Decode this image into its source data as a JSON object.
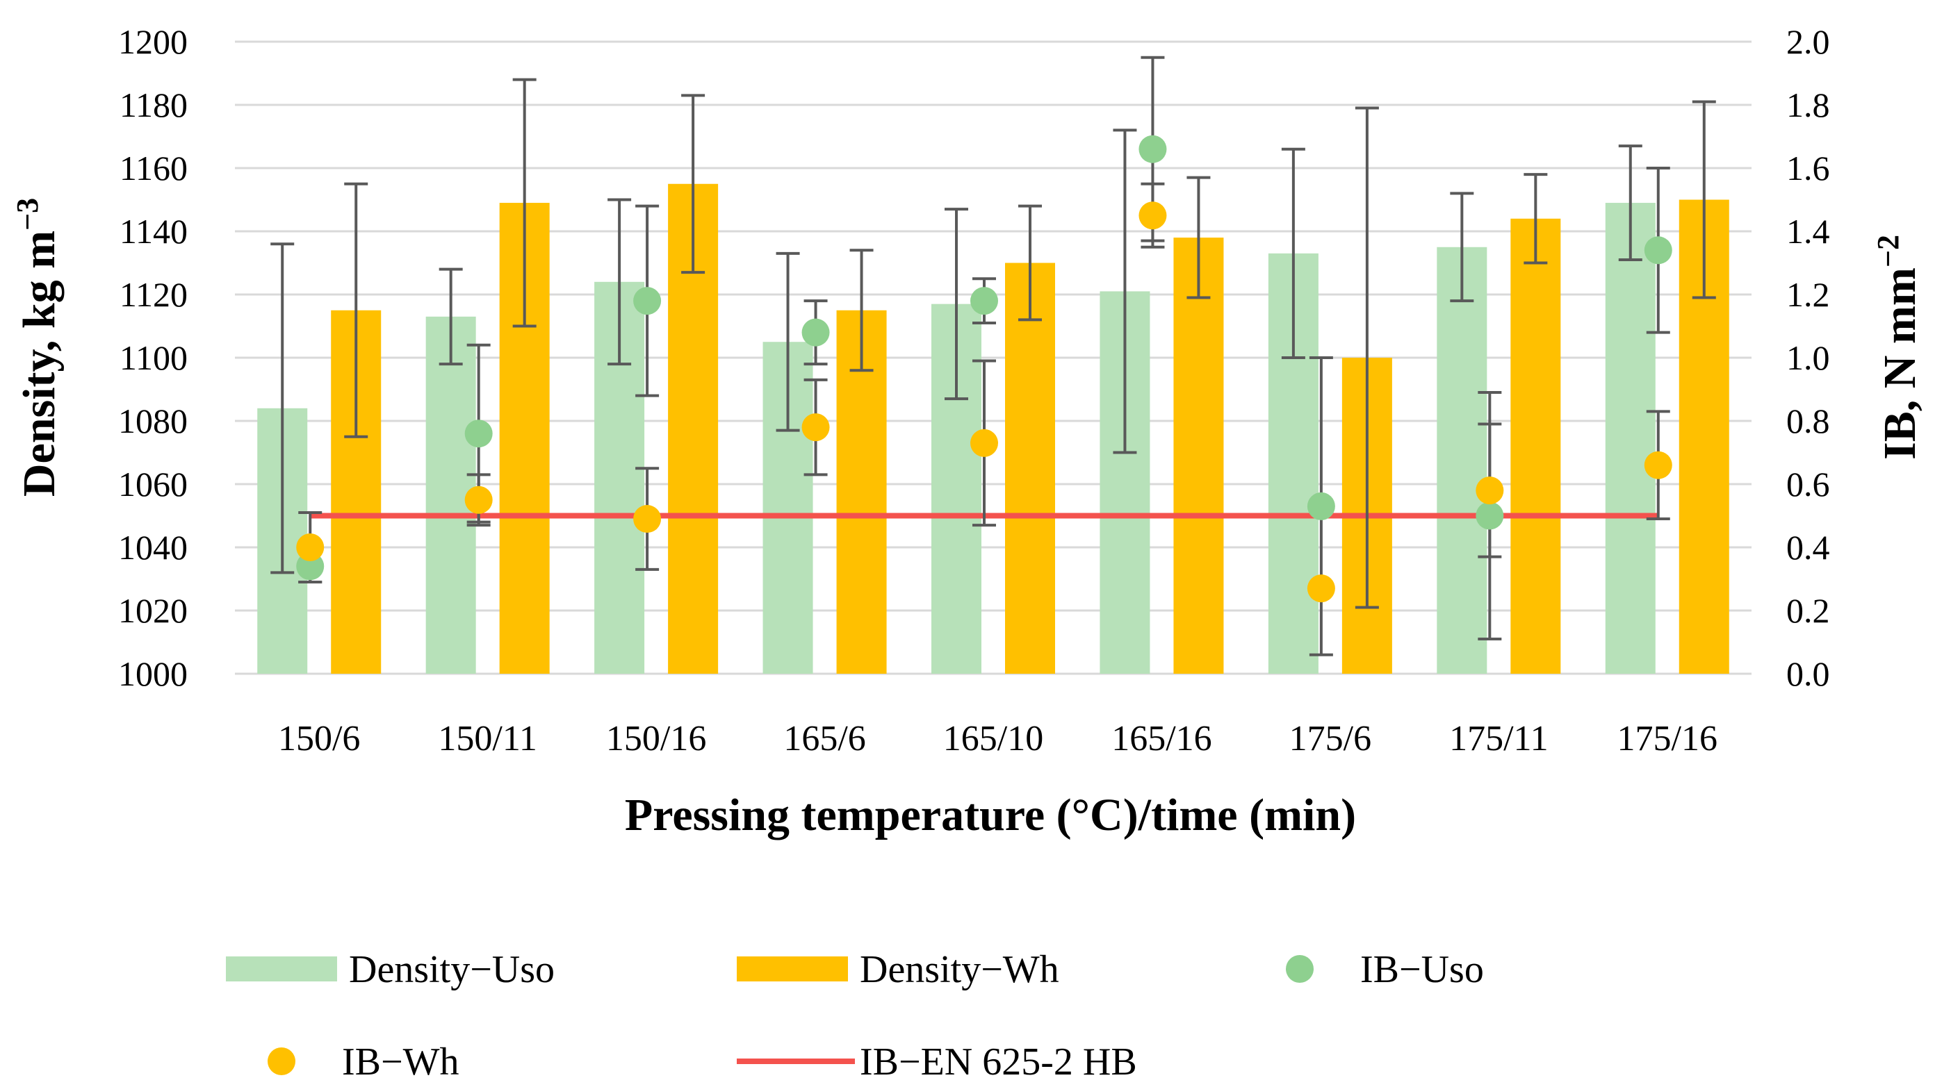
{
  "chart_data": {
    "type": "bar",
    "xlabel": "Pressing temperature (°C)/time (min)",
    "ylabel": "Density, kg m",
    "ylabel_sup": "−3",
    "y2label": "IB, N mm",
    "y2label_sup": "−2",
    "categories": [
      "150/6",
      "150/11",
      "150/16",
      "165/6",
      "165/10",
      "165/16",
      "175/6",
      "175/11",
      "175/16"
    ],
    "ylim": [
      1000,
      1200
    ],
    "y2lim": [
      0.0,
      2.0
    ],
    "yticks": [
      "1000",
      "1020",
      "1040",
      "1060",
      "1080",
      "1100",
      "1120",
      "1140",
      "1160",
      "1180",
      "1200"
    ],
    "y2ticks": [
      "0.0",
      "0.2",
      "0.4",
      "0.6",
      "0.8",
      "1.0",
      "1.2",
      "1.4",
      "1.6",
      "1.8",
      "2.0"
    ],
    "grid": true,
    "legend_position": "bottom",
    "series": [
      {
        "name": "Density−Uso",
        "kind": "bar",
        "axis": "left",
        "color": "#B7E1B9",
        "values": [
          1084,
          1113,
          1124,
          1105,
          1117,
          1121,
          1133,
          1135,
          1149
        ],
        "error": [
          52,
          15,
          26,
          28,
          30,
          51,
          33,
          17,
          18
        ]
      },
      {
        "name": "Density−Wh",
        "kind": "bar",
        "axis": "left",
        "color": "#FFC000",
        "values": [
          1115,
          1149,
          1155,
          1115,
          1130,
          1138,
          1100,
          1144,
          1150
        ],
        "error": [
          40,
          39,
          28,
          19,
          18,
          19,
          79,
          14,
          31
        ]
      },
      {
        "name": "IB−Uso",
        "kind": "scatter",
        "axis": "right",
        "color": "#8ED08F",
        "values": [
          0.34,
          0.76,
          1.18,
          1.08,
          1.18,
          1.66,
          0.53,
          0.5,
          1.34
        ],
        "error": [
          0.05,
          0.28,
          0.3,
          0.1,
          0.07,
          0.29,
          0.47,
          0.39,
          0.26
        ]
      },
      {
        "name": "IB−Wh",
        "kind": "scatter",
        "axis": "right",
        "color": "#FFC000",
        "values": [
          0.4,
          0.55,
          0.49,
          0.78,
          0.73,
          1.45,
          0.27,
          0.58,
          0.66
        ],
        "error": [
          0.11,
          0.08,
          0.16,
          0.15,
          0.26,
          0.1,
          0.0,
          0.21,
          0.17
        ]
      },
      {
        "name": "IB−EN 625-2 HB",
        "kind": "line",
        "axis": "right",
        "color": "#F4524D",
        "values": [
          0.5,
          0.5,
          0.5,
          0.5,
          0.5,
          0.5,
          0.5,
          0.5,
          0.5
        ]
      }
    ]
  }
}
